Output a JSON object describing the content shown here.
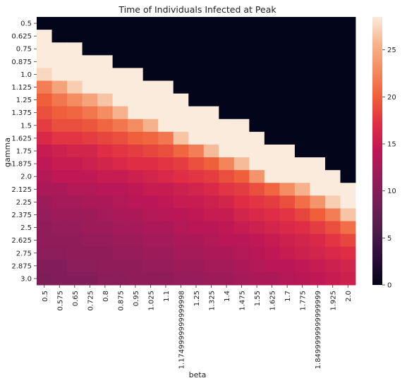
{
  "chart_data": {
    "type": "heatmap",
    "title": "Time of Individuals Infected at Peak",
    "xlabel": "beta",
    "ylabel": "gamma",
    "x_categories": [
      "0.5",
      "0.575",
      "0.65",
      "0.725",
      "0.8",
      "0.875",
      "0.95",
      "1.025",
      "1.1",
      "1.1749999999999998",
      "1.25",
      "1.325",
      "1.4",
      "1.475",
      "1.55",
      "1.625",
      "1.7",
      "1.775",
      "1.8499999999999999",
      "1.925",
      "2.0"
    ],
    "y_categories": [
      "0.5",
      "0.625",
      "0.75",
      "0.875",
      "1.0",
      "1.125",
      "1.25",
      "1.375",
      "1.5",
      "1.625",
      "1.75",
      "1.875",
      "2.0",
      "2.125",
      "2.25",
      "2.375",
      "2.5",
      "2.625",
      "2.75",
      "2.875",
      "3.0"
    ],
    "colorbar": {
      "min": 0,
      "max": 28.5,
      "ticks": [
        0,
        5,
        10,
        15,
        20,
        25
      ]
    },
    "colormap": [
      "#03051a",
      "#2b0b3a",
      "#4c1d4b",
      "#701f57",
      "#961c5b",
      "#bd1655",
      "#df2e44",
      "#ef5e3a",
      "#f48a5f",
      "#f6b48e",
      "#faebdd"
    ],
    "values": [
      [
        0,
        0,
        0,
        0,
        0,
        0,
        0,
        0,
        0,
        0,
        0,
        0,
        0,
        0,
        0,
        0,
        0,
        0,
        0,
        0,
        0
      ],
      [
        28.5,
        0,
        0,
        0,
        0,
        0,
        0,
        0,
        0,
        0,
        0,
        0,
        0,
        0,
        0,
        0,
        0,
        0,
        0,
        0,
        0
      ],
      [
        28.5,
        28.5,
        28.5,
        0,
        0,
        0,
        0,
        0,
        0,
        0,
        0,
        0,
        0,
        0,
        0,
        0,
        0,
        0,
        0,
        0,
        0
      ],
      [
        28.5,
        28.5,
        28.5,
        28.5,
        28.5,
        0,
        0,
        0,
        0,
        0,
        0,
        0,
        0,
        0,
        0,
        0,
        0,
        0,
        0,
        0,
        0
      ],
      [
        27.5,
        28.5,
        28.5,
        28.5,
        28.5,
        28.5,
        28.5,
        0,
        0,
        0,
        0,
        0,
        0,
        0,
        0,
        0,
        0,
        0,
        0,
        0,
        0
      ],
      [
        22,
        24.5,
        27,
        28.5,
        28.5,
        28.5,
        28.5,
        28.5,
        28.5,
        0,
        0,
        0,
        0,
        0,
        0,
        0,
        0,
        0,
        0,
        0,
        0
      ],
      [
        20,
        21.5,
        23,
        24.5,
        26.5,
        28.5,
        28.5,
        28.5,
        28.5,
        28.5,
        0,
        0,
        0,
        0,
        0,
        0,
        0,
        0,
        0,
        0,
        0
      ],
      [
        19,
        20,
        20.5,
        21.5,
        23,
        25.5,
        28.5,
        28.5,
        28.5,
        28.5,
        28.5,
        28.5,
        0,
        0,
        0,
        0,
        0,
        0,
        0,
        0,
        0
      ],
      [
        18,
        19,
        19,
        19.5,
        20.5,
        21.5,
        23,
        25.5,
        28.5,
        28.5,
        28.5,
        28.5,
        28.5,
        28.5,
        0,
        0,
        0,
        0,
        0,
        0,
        0
      ],
      [
        16.5,
        17.5,
        17.5,
        18,
        18.5,
        19,
        20,
        20.5,
        21.5,
        26.5,
        28.5,
        28.5,
        28.5,
        28.5,
        28.5,
        0,
        0,
        0,
        0,
        0,
        0
      ],
      [
        15,
        15.5,
        16,
        16,
        17,
        17.5,
        18,
        18.5,
        19,
        20.5,
        22,
        26,
        28.5,
        28.5,
        28.5,
        28.5,
        28.5,
        0,
        0,
        0,
        0
      ],
      [
        14.5,
        15,
        15,
        15.5,
        16,
        16.5,
        17,
        17,
        17.5,
        18,
        19,
        20,
        22.5,
        26,
        28.5,
        28.5,
        28.5,
        28.5,
        28.5,
        0,
        0
      ],
      [
        13.5,
        14.5,
        14.5,
        14.5,
        15,
        15,
        15.5,
        16,
        16.5,
        17,
        17.5,
        18,
        19,
        20,
        23.5,
        28.5,
        28.5,
        28.5,
        28.5,
        28.5,
        0
      ],
      [
        13,
        13,
        13.5,
        13.5,
        14,
        14,
        14.5,
        15,
        15,
        15.5,
        16,
        16.5,
        17.5,
        18,
        19,
        20.5,
        23,
        25.5,
        28.5,
        28.5,
        28.5
      ],
      [
        12,
        12.5,
        12.5,
        13,
        13,
        13.5,
        14,
        14,
        14.5,
        15,
        15,
        15.5,
        16,
        17,
        17.5,
        18,
        19,
        21,
        23.5,
        27,
        28.5
      ],
      [
        11.5,
        12,
        12,
        12,
        12.5,
        13,
        13,
        13.5,
        14,
        14,
        14.5,
        15,
        15,
        16,
        16.5,
        17,
        17.5,
        18.5,
        20,
        22,
        26.5
      ],
      [
        11,
        11.5,
        11.5,
        12,
        12,
        12.5,
        12.5,
        13,
        13,
        13.5,
        14,
        14,
        14.5,
        15,
        15.5,
        16,
        16.5,
        17,
        18,
        19,
        21
      ],
      [
        11,
        11,
        11,
        11.5,
        11.5,
        12,
        12,
        12.5,
        12.5,
        13,
        13,
        13.5,
        14,
        14,
        14.5,
        15,
        15.5,
        16,
        16.5,
        17.5,
        18.5
      ],
      [
        10.5,
        10.5,
        11,
        11,
        11,
        11.5,
        11.5,
        12,
        12,
        12.5,
        12.5,
        13,
        13,
        13.5,
        14,
        14.5,
        15,
        15.5,
        16,
        16.5,
        17
      ],
      [
        10,
        10,
        10.5,
        10.5,
        11,
        11,
        11,
        11.5,
        11.5,
        12,
        12,
        12.5,
        12.5,
        13,
        13.5,
        14,
        14,
        14.5,
        15,
        15.5,
        16
      ],
      [
        9.5,
        10,
        10,
        10,
        10.5,
        10.5,
        11,
        11,
        11,
        11.5,
        11.5,
        12,
        12,
        12.5,
        13,
        13,
        13.5,
        14,
        14.5,
        15,
        15.5
      ]
    ]
  }
}
